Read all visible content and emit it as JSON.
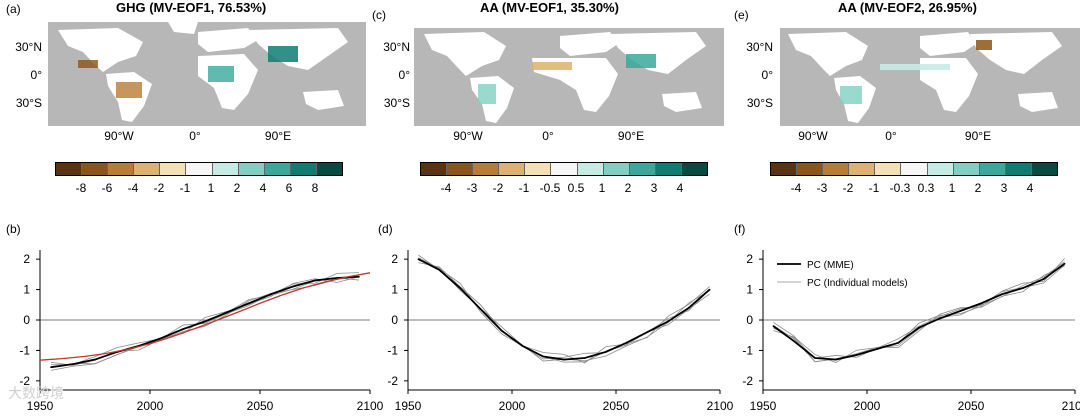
{
  "panels": {
    "a": {
      "letter": "(a)",
      "title": "GHG (MV-EOF1, 76.53%)"
    },
    "b": {
      "letter": "(b)"
    },
    "c": {
      "letter": "(c)",
      "title": "AA (MV-EOF1, 35.30%)"
    },
    "d": {
      "letter": "(d)"
    },
    "e": {
      "letter": "(e)",
      "title": "AA (MV-EOF2, 26.95%)"
    },
    "f": {
      "letter": "(f)"
    }
  },
  "map_axes": {
    "lat_labels": [
      "30°N",
      "0°",
      "30°S"
    ],
    "lon_labels": [
      "90°W",
      "0°",
      "90°E"
    ]
  },
  "colorbars": {
    "a": {
      "ticks": [
        "-8",
        "-6",
        "-4",
        "-2",
        "-1",
        "1",
        "2",
        "4",
        "6",
        "8"
      ],
      "colors": [
        "#5a3410",
        "#8c5418",
        "#b97c36",
        "#dcb26e",
        "#f3e0b5",
        "#f6f6f6",
        "#c6ebe5",
        "#80cfc2",
        "#3aa99b",
        "#0d7d72",
        "#064a42"
      ]
    },
    "c": {
      "ticks": [
        "-4",
        "-3",
        "-2",
        "-1",
        "-0.5",
        "0.5",
        "1",
        "2",
        "3",
        "4"
      ],
      "colors": [
        "#5a3410",
        "#8c5418",
        "#b97c36",
        "#dcb26e",
        "#f3e0b5",
        "#f6f6f6",
        "#c6ebe5",
        "#80cfc2",
        "#3aa99b",
        "#0d7d72",
        "#064a42"
      ]
    },
    "e": {
      "ticks": [
        "-4",
        "-3",
        "-2",
        "-1",
        "-0.3",
        "0.3",
        "1",
        "2",
        "3",
        "4"
      ],
      "colors": [
        "#5a3410",
        "#8c5418",
        "#b97c36",
        "#dcb26e",
        "#f3e0b5",
        "#f6f6f6",
        "#c6ebe5",
        "#80cfc2",
        "#3aa99b",
        "#0d7d72",
        "#064a42"
      ]
    }
  },
  "legend": {
    "mme": "PC (MME)",
    "individual": "PC (Individual models)"
  },
  "watermark": "大数跨境",
  "colors": {
    "mme": "#000000",
    "individual": "#8c8c8c",
    "fit": "#c0392b",
    "land": "#ffffff",
    "ocean": "#b7b7b7"
  },
  "chart_data": [
    {
      "type": "line",
      "panel": "b",
      "xlim": [
        1950,
        2100
      ],
      "ylim": [
        -2.3,
        2.3
      ],
      "xticks": [
        1950,
        2000,
        2050,
        2100
      ],
      "yticks": [
        -2,
        -1,
        0,
        1,
        2
      ],
      "series": [
        {
          "name": "PC (MME)",
          "x": [
            1955,
            1965,
            1975,
            1985,
            1995,
            2005,
            2015,
            2025,
            2035,
            2045,
            2055,
            2065,
            2075,
            2085,
            2095
          ],
          "values": [
            -1.55,
            -1.45,
            -1.3,
            -1.05,
            -0.85,
            -0.6,
            -0.3,
            -0.05,
            0.25,
            0.55,
            0.85,
            1.1,
            1.3,
            1.38,
            1.42
          ]
        },
        {
          "name": "Fit",
          "x": [
            1950,
            1960,
            1970,
            1980,
            1990,
            2000,
            2010,
            2020,
            2030,
            2040,
            2050,
            2060,
            2070,
            2080,
            2090,
            2100
          ],
          "values": [
            -1.32,
            -1.27,
            -1.2,
            -1.1,
            -0.96,
            -0.78,
            -0.55,
            -0.29,
            -0.02,
            0.26,
            0.55,
            0.82,
            1.06,
            1.26,
            1.42,
            1.55
          ]
        }
      ]
    },
    {
      "type": "line",
      "panel": "d",
      "xlim": [
        1950,
        2100
      ],
      "ylim": [
        -2.3,
        2.3
      ],
      "xticks": [
        1950,
        2000,
        2050,
        2100
      ],
      "yticks": [
        -2,
        -1,
        0,
        1,
        2
      ],
      "series": [
        {
          "name": "PC (MME)",
          "x": [
            1955,
            1965,
            1975,
            1985,
            1995,
            2005,
            2015,
            2025,
            2035,
            2045,
            2055,
            2065,
            2075,
            2085,
            2095
          ],
          "values": [
            2.0,
            1.65,
            1.05,
            0.35,
            -0.35,
            -0.85,
            -1.2,
            -1.3,
            -1.25,
            -1.05,
            -0.75,
            -0.4,
            -0.05,
            0.4,
            1.0
          ]
        }
      ]
    },
    {
      "type": "line",
      "panel": "f",
      "xlim": [
        1950,
        2100
      ],
      "ylim": [
        -2.3,
        2.3
      ],
      "xticks": [
        1950,
        2000,
        2050,
        2100
      ],
      "yticks": [
        -2,
        -1,
        0,
        1,
        2
      ],
      "series": [
        {
          "name": "PC (MME)",
          "x": [
            1955,
            1965,
            1975,
            1985,
            1995,
            2005,
            2015,
            2025,
            2035,
            2045,
            2055,
            2065,
            2075,
            2085,
            2095
          ],
          "values": [
            -0.2,
            -0.7,
            -1.25,
            -1.3,
            -1.15,
            -0.95,
            -0.75,
            -0.25,
            0.05,
            0.3,
            0.55,
            0.85,
            1.05,
            1.35,
            1.85
          ]
        }
      ]
    }
  ]
}
